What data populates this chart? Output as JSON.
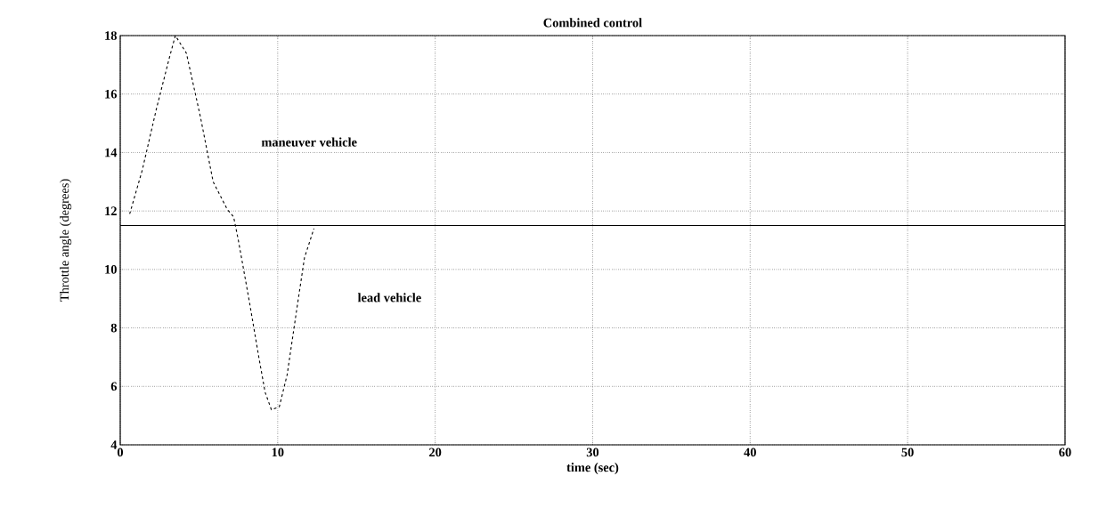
{
  "chart_data": {
    "type": "line",
    "title": "Combined control",
    "xlabel": "time (sec)",
    "ylabel": "Throttle angle (degrees)",
    "xlim": [
      0,
      60
    ],
    "ylim": [
      4,
      18
    ],
    "xticks": [
      0,
      10,
      20,
      30,
      40,
      50,
      60
    ],
    "yticks": [
      4,
      6,
      8,
      10,
      12,
      14,
      16,
      18
    ],
    "grid": true,
    "series": [
      {
        "color": "#000000",
        "line_style": "dashed",
        "x": [
          0.6,
          1.4,
          2.3,
          3.1,
          3.5,
          4.2,
          5.1,
          5.9,
          6.8,
          7.2,
          7.5,
          8.2,
          8.8,
          9.2,
          9.6,
          10.1,
          10.6,
          11.2,
          11.7,
          12.3
        ],
        "values": [
          11.9,
          13.4,
          15.5,
          17.2,
          18,
          17.4,
          15.2,
          13.0,
          12.05,
          11.8,
          11.0,
          8.9,
          7.0,
          5.8,
          5.2,
          5.3,
          6.4,
          8.6,
          10.4,
          11.4
        ]
      },
      {
        "color": "#000000",
        "line_style": "solid",
        "x": [
          0,
          60
        ],
        "values": [
          11.5,
          11.5
        ]
      }
    ],
    "annotations": [
      "maneuver vehicle",
      "lead vehicle"
    ]
  }
}
